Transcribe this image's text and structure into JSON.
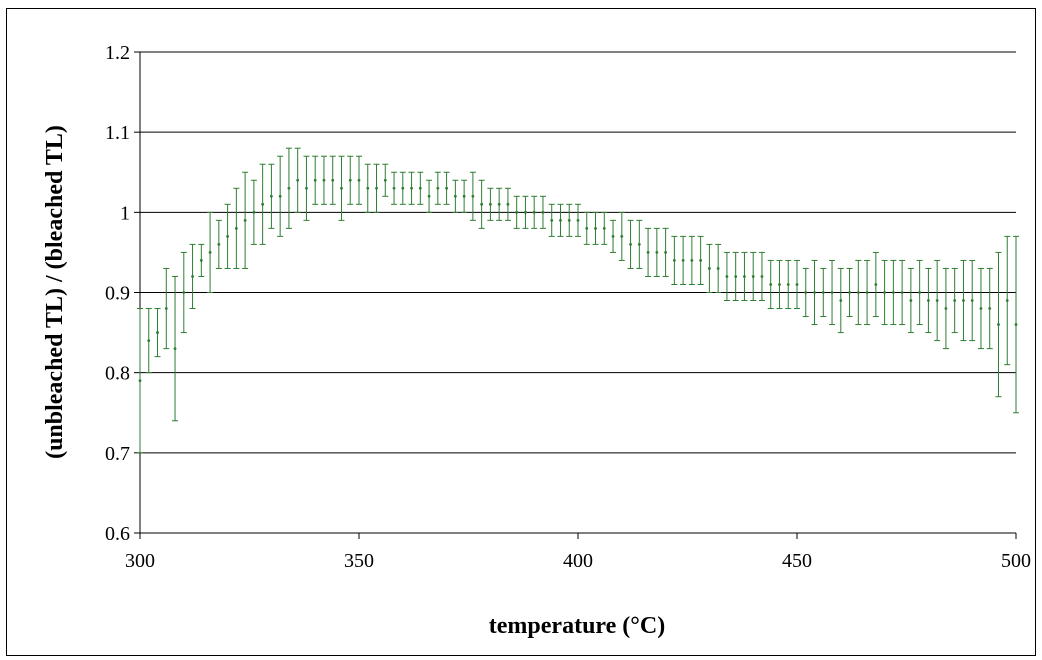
{
  "chart_data": {
    "type": "scatter",
    "title": "",
    "xlabel": "temperature (°C)",
    "ylabel": "(unbleached TL) / (bleached TL)",
    "xlim": [
      300,
      500
    ],
    "ylim": [
      0.6,
      1.2
    ],
    "x_ticks": [
      "300",
      "350",
      "400",
      "450",
      "500"
    ],
    "y_ticks": [
      "0.6",
      "0.7",
      "0.8",
      "0.9",
      "1",
      "1.1",
      "1.2"
    ],
    "grid": "horizontal major gridlines",
    "legend": "none",
    "series_color": "#2e7d32",
    "error_bars": true,
    "series": [
      {
        "points": [
          {
            "x": 300,
            "y": 0.79,
            "err": 0.09
          },
          {
            "x": 302,
            "y": 0.84,
            "err": 0.04
          },
          {
            "x": 304,
            "y": 0.85,
            "err": 0.03
          },
          {
            "x": 306,
            "y": 0.88,
            "err": 0.05
          },
          {
            "x": 308,
            "y": 0.83,
            "err": 0.09
          },
          {
            "x": 310,
            "y": 0.9,
            "err": 0.05
          },
          {
            "x": 312,
            "y": 0.92,
            "err": 0.04
          },
          {
            "x": 314,
            "y": 0.94,
            "err": 0.02
          },
          {
            "x": 316,
            "y": 0.95,
            "err": 0.05
          },
          {
            "x": 318,
            "y": 0.96,
            "err": 0.03
          },
          {
            "x": 320,
            "y": 0.97,
            "err": 0.04
          },
          {
            "x": 322,
            "y": 0.98,
            "err": 0.05
          },
          {
            "x": 324,
            "y": 0.99,
            "err": 0.06
          },
          {
            "x": 326,
            "y": 1.0,
            "err": 0.04
          },
          {
            "x": 328,
            "y": 1.01,
            "err": 0.05
          },
          {
            "x": 330,
            "y": 1.02,
            "err": 0.04
          },
          {
            "x": 332,
            "y": 1.02,
            "err": 0.05
          },
          {
            "x": 334,
            "y": 1.03,
            "err": 0.05
          },
          {
            "x": 336,
            "y": 1.04,
            "err": 0.04
          },
          {
            "x": 338,
            "y": 1.03,
            "err": 0.04
          },
          {
            "x": 340,
            "y": 1.04,
            "err": 0.03
          },
          {
            "x": 342,
            "y": 1.04,
            "err": 0.03
          },
          {
            "x": 344,
            "y": 1.04,
            "err": 0.03
          },
          {
            "x": 346,
            "y": 1.03,
            "err": 0.04
          },
          {
            "x": 348,
            "y": 1.04,
            "err": 0.03
          },
          {
            "x": 350,
            "y": 1.04,
            "err": 0.03
          },
          {
            "x": 352,
            "y": 1.03,
            "err": 0.03
          },
          {
            "x": 354,
            "y": 1.03,
            "err": 0.03
          },
          {
            "x": 356,
            "y": 1.04,
            "err": 0.02
          },
          {
            "x": 358,
            "y": 1.03,
            "err": 0.02
          },
          {
            "x": 360,
            "y": 1.03,
            "err": 0.02
          },
          {
            "x": 362,
            "y": 1.03,
            "err": 0.02
          },
          {
            "x": 364,
            "y": 1.03,
            "err": 0.02
          },
          {
            "x": 366,
            "y": 1.02,
            "err": 0.02
          },
          {
            "x": 368,
            "y": 1.03,
            "err": 0.02
          },
          {
            "x": 370,
            "y": 1.03,
            "err": 0.02
          },
          {
            "x": 372,
            "y": 1.02,
            "err": 0.02
          },
          {
            "x": 374,
            "y": 1.02,
            "err": 0.02
          },
          {
            "x": 376,
            "y": 1.02,
            "err": 0.03
          },
          {
            "x": 378,
            "y": 1.01,
            "err": 0.03
          },
          {
            "x": 380,
            "y": 1.01,
            "err": 0.02
          },
          {
            "x": 382,
            "y": 1.01,
            "err": 0.02
          },
          {
            "x": 384,
            "y": 1.01,
            "err": 0.02
          },
          {
            "x": 386,
            "y": 1.0,
            "err": 0.02
          },
          {
            "x": 388,
            "y": 1.0,
            "err": 0.02
          },
          {
            "x": 390,
            "y": 1.0,
            "err": 0.02
          },
          {
            "x": 392,
            "y": 1.0,
            "err": 0.02
          },
          {
            "x": 394,
            "y": 0.99,
            "err": 0.02
          },
          {
            "x": 396,
            "y": 0.99,
            "err": 0.02
          },
          {
            "x": 398,
            "y": 0.99,
            "err": 0.02
          },
          {
            "x": 400,
            "y": 0.99,
            "err": 0.02
          },
          {
            "x": 402,
            "y": 0.98,
            "err": 0.02
          },
          {
            "x": 404,
            "y": 0.98,
            "err": 0.02
          },
          {
            "x": 406,
            "y": 0.98,
            "err": 0.02
          },
          {
            "x": 408,
            "y": 0.97,
            "err": 0.02
          },
          {
            "x": 410,
            "y": 0.97,
            "err": 0.03
          },
          {
            "x": 412,
            "y": 0.96,
            "err": 0.03
          },
          {
            "x": 414,
            "y": 0.96,
            "err": 0.03
          },
          {
            "x": 416,
            "y": 0.95,
            "err": 0.03
          },
          {
            "x": 418,
            "y": 0.95,
            "err": 0.03
          },
          {
            "x": 420,
            "y": 0.95,
            "err": 0.03
          },
          {
            "x": 422,
            "y": 0.94,
            "err": 0.03
          },
          {
            "x": 424,
            "y": 0.94,
            "err": 0.03
          },
          {
            "x": 426,
            "y": 0.94,
            "err": 0.03
          },
          {
            "x": 428,
            "y": 0.94,
            "err": 0.03
          },
          {
            "x": 430,
            "y": 0.93,
            "err": 0.03
          },
          {
            "x": 432,
            "y": 0.93,
            "err": 0.03
          },
          {
            "x": 434,
            "y": 0.92,
            "err": 0.03
          },
          {
            "x": 436,
            "y": 0.92,
            "err": 0.03
          },
          {
            "x": 438,
            "y": 0.92,
            "err": 0.03
          },
          {
            "x": 440,
            "y": 0.92,
            "err": 0.03
          },
          {
            "x": 442,
            "y": 0.92,
            "err": 0.03
          },
          {
            "x": 444,
            "y": 0.91,
            "err": 0.03
          },
          {
            "x": 446,
            "y": 0.91,
            "err": 0.03
          },
          {
            "x": 448,
            "y": 0.91,
            "err": 0.03
          },
          {
            "x": 450,
            "y": 0.91,
            "err": 0.03
          },
          {
            "x": 452,
            "y": 0.9,
            "err": 0.03
          },
          {
            "x": 454,
            "y": 0.9,
            "err": 0.04
          },
          {
            "x": 456,
            "y": 0.9,
            "err": 0.03
          },
          {
            "x": 458,
            "y": 0.9,
            "err": 0.04
          },
          {
            "x": 460,
            "y": 0.89,
            "err": 0.04
          },
          {
            "x": 462,
            "y": 0.9,
            "err": 0.03
          },
          {
            "x": 464,
            "y": 0.9,
            "err": 0.04
          },
          {
            "x": 466,
            "y": 0.9,
            "err": 0.04
          },
          {
            "x": 468,
            "y": 0.91,
            "err": 0.04
          },
          {
            "x": 470,
            "y": 0.9,
            "err": 0.04
          },
          {
            "x": 472,
            "y": 0.9,
            "err": 0.04
          },
          {
            "x": 474,
            "y": 0.9,
            "err": 0.04
          },
          {
            "x": 476,
            "y": 0.89,
            "err": 0.04
          },
          {
            "x": 478,
            "y": 0.9,
            "err": 0.04
          },
          {
            "x": 480,
            "y": 0.89,
            "err": 0.04
          },
          {
            "x": 482,
            "y": 0.89,
            "err": 0.05
          },
          {
            "x": 484,
            "y": 0.88,
            "err": 0.05
          },
          {
            "x": 486,
            "y": 0.89,
            "err": 0.04
          },
          {
            "x": 488,
            "y": 0.89,
            "err": 0.05
          },
          {
            "x": 490,
            "y": 0.89,
            "err": 0.05
          },
          {
            "x": 492,
            "y": 0.88,
            "err": 0.05
          },
          {
            "x": 494,
            "y": 0.88,
            "err": 0.05
          },
          {
            "x": 496,
            "y": 0.86,
            "err": 0.09
          },
          {
            "x": 498,
            "y": 0.89,
            "err": 0.08
          },
          {
            "x": 500,
            "y": 0.86,
            "err": 0.11
          }
        ]
      }
    ]
  }
}
